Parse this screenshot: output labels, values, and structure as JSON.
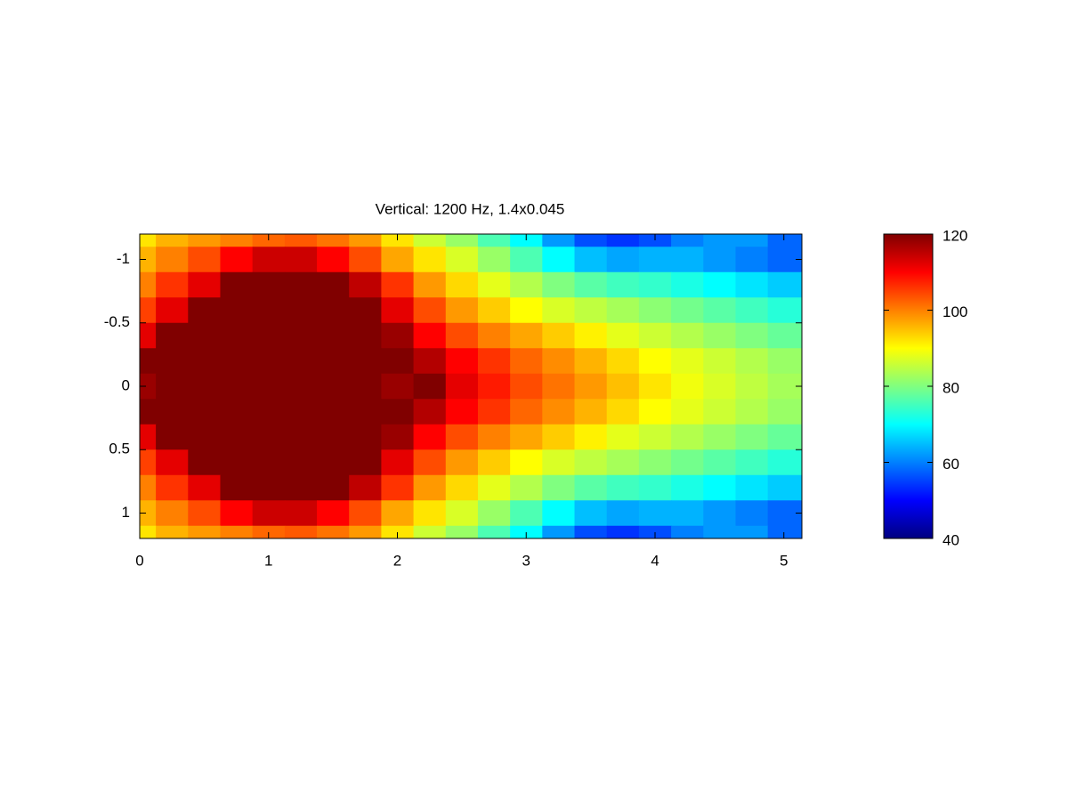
{
  "chart_data": {
    "type": "heatmap",
    "title": "Vertical: 1200 Hz, 1.4x0.045",
    "x": [
      0,
      0.25,
      0.5,
      0.75,
      1,
      1.25,
      1.5,
      1.75,
      2,
      2.25,
      2.5,
      2.75,
      3,
      3.25,
      3.5,
      3.75,
      4,
      4.25,
      4.5,
      4.75,
      5
    ],
    "y": [
      -1.2,
      -1,
      -0.8,
      -0.6,
      -0.4,
      -0.2,
      0,
      0.2,
      0.4,
      0.6,
      0.8,
      1,
      1.2
    ],
    "z": [
      [
        92,
        96,
        98,
        100,
        102,
        103,
        101,
        98,
        92,
        86,
        82,
        76,
        70,
        62,
        56,
        54,
        56,
        60,
        62,
        62,
        58
      ],
      [
        96,
        100,
        104,
        110,
        114,
        114,
        110,
        104,
        97,
        92,
        87,
        82,
        76,
        70,
        65,
        63,
        64,
        64,
        62,
        60,
        58
      ],
      [
        100,
        106,
        112,
        122,
        128,
        128,
        124,
        115,
        106,
        98,
        93,
        88,
        84,
        80,
        77,
        75,
        74,
        72,
        70,
        68,
        66
      ],
      [
        105,
        112,
        125,
        130,
        130,
        130,
        130,
        122,
        112,
        104,
        98,
        94,
        90,
        87,
        85,
        83,
        81,
        79,
        77,
        75,
        73
      ],
      [
        112,
        122,
        130,
        130,
        130,
        130,
        130,
        128,
        118,
        110,
        104,
        100,
        97,
        94,
        91,
        88,
        86,
        84,
        82,
        80,
        78
      ],
      [
        122,
        128,
        130,
        130,
        130,
        130,
        130,
        130,
        125,
        116,
        110,
        106,
        102,
        99,
        96,
        93,
        90,
        88,
        86,
        84,
        82
      ],
      [
        118,
        125,
        130,
        130,
        130,
        130,
        130,
        130,
        118,
        122,
        112,
        108,
        104,
        101,
        98,
        95,
        92,
        89,
        87,
        85,
        83
      ],
      [
        122,
        128,
        130,
        130,
        130,
        130,
        130,
        130,
        125,
        116,
        110,
        106,
        102,
        99,
        96,
        93,
        90,
        88,
        86,
        84,
        82
      ],
      [
        112,
        122,
        130,
        130,
        130,
        130,
        130,
        128,
        118,
        110,
        104,
        100,
        97,
        94,
        91,
        88,
        86,
        84,
        82,
        80,
        78
      ],
      [
        105,
        112,
        125,
        130,
        130,
        130,
        130,
        122,
        112,
        104,
        98,
        94,
        90,
        87,
        85,
        83,
        81,
        79,
        77,
        75,
        73
      ],
      [
        100,
        106,
        112,
        122,
        128,
        128,
        124,
        115,
        106,
        98,
        93,
        88,
        84,
        80,
        77,
        75,
        74,
        72,
        70,
        68,
        66
      ],
      [
        96,
        100,
        104,
        110,
        114,
        114,
        110,
        104,
        97,
        92,
        87,
        82,
        76,
        70,
        65,
        63,
        64,
        64,
        62,
        60,
        58
      ],
      [
        92,
        96,
        98,
        100,
        102,
        103,
        101,
        98,
        92,
        86,
        82,
        76,
        70,
        62,
        56,
        54,
        56,
        60,
        62,
        62,
        58
      ]
    ],
    "xlim": [
      0,
      5.14
    ],
    "xticks": [
      0,
      1,
      2,
      3,
      4,
      5
    ],
    "ylim": [
      -1.2,
      1.2
    ],
    "yticks": [
      -1,
      -0.5,
      0,
      0.5,
      1
    ],
    "y_reversed": true,
    "colormap": "jet",
    "clim": [
      40,
      120
    ],
    "colorbar_ticks": [
      40,
      60,
      80,
      100,
      120
    ]
  }
}
